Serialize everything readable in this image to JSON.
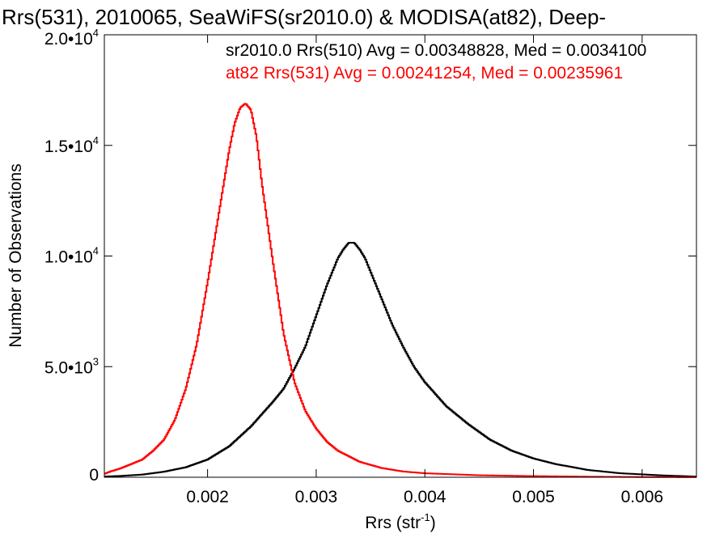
{
  "chart_data": {
    "type": "line",
    "title": "Rrs(531), 2010065, SeaWiFS(sr2010.0) & MODISA(at82), Deep-",
    "xlabel": "Rrs (str",
    "xlabel_sup": "-1",
    "xlabel_close": ")",
    "ylabel": "Number of Observations",
    "xlim": [
      0.00105,
      0.0065
    ],
    "ylim": [
      0,
      20000
    ],
    "grid": false,
    "step": true,
    "x_ticks": [
      {
        "value": 0.002,
        "label": "0.002"
      },
      {
        "value": 0.003,
        "label": "0.003"
      },
      {
        "value": 0.004,
        "label": "0.004"
      },
      {
        "value": 0.005,
        "label": "0.005"
      },
      {
        "value": 0.006,
        "label": "0.006"
      }
    ],
    "y_ticks": [
      {
        "value": 0,
        "mant": "0",
        "exp": ""
      },
      {
        "value": 5000,
        "mant": "5.0•10",
        "exp": "3"
      },
      {
        "value": 10000,
        "mant": "1.0•10",
        "exp": "4"
      },
      {
        "value": 15000,
        "mant": "1.5•10",
        "exp": "4"
      },
      {
        "value": 20000,
        "mant": "2.0•10",
        "exp": "4"
      }
    ],
    "legend": [
      {
        "text": "sr2010.0 Rrs(510) Avg = 0.00348828, Med = 0.0034100",
        "color": "#000000"
      },
      {
        "text": "at82 Rrs(531) Avg = 0.00241254, Med = 0.00235961",
        "color": "#ff0000"
      }
    ],
    "series": [
      {
        "color": "#000000",
        "x": [
          0.00105,
          0.0012,
          0.0014,
          0.0016,
          0.0018,
          0.002,
          0.0022,
          0.0024,
          0.0026,
          0.0027,
          0.0028,
          0.0029,
          0.003,
          0.0031,
          0.0032,
          0.00325,
          0.0033,
          0.00335,
          0.0034,
          0.00345,
          0.0035,
          0.0036,
          0.0037,
          0.0038,
          0.0039,
          0.004,
          0.0042,
          0.0044,
          0.0046,
          0.0048,
          0.005,
          0.0052,
          0.0055,
          0.0058,
          0.0062,
          0.0065
        ],
        "y": [
          30,
          60,
          120,
          250,
          450,
          800,
          1400,
          2300,
          3400,
          4000,
          4900,
          5900,
          7300,
          8700,
          9900,
          10300,
          10600,
          10600,
          10300,
          9900,
          9300,
          8100,
          6900,
          5900,
          5000,
          4300,
          3200,
          2400,
          1700,
          1200,
          850,
          600,
          330,
          180,
          80,
          30
        ]
      },
      {
        "color": "#ff0000",
        "x": [
          0.00105,
          0.0011,
          0.0012,
          0.0013,
          0.0014,
          0.0015,
          0.0016,
          0.0017,
          0.0018,
          0.0019,
          0.002,
          0.0021,
          0.0022,
          0.00225,
          0.0023,
          0.00235,
          0.0024,
          0.00245,
          0.0025,
          0.0026,
          0.0027,
          0.0028,
          0.0029,
          0.003,
          0.0031,
          0.0032,
          0.0034,
          0.0036,
          0.0038,
          0.004,
          0.0045,
          0.005,
          0.0055,
          0.006,
          0.0065
        ],
        "y": [
          150,
          250,
          400,
          600,
          800,
          1200,
          1700,
          2600,
          4000,
          6000,
          8800,
          11800,
          14800,
          16000,
          16700,
          16900,
          16600,
          15400,
          13300,
          9800,
          6500,
          4300,
          3000,
          2200,
          1600,
          1200,
          700,
          420,
          260,
          180,
          90,
          50,
          25,
          10,
          5
        ]
      }
    ]
  }
}
